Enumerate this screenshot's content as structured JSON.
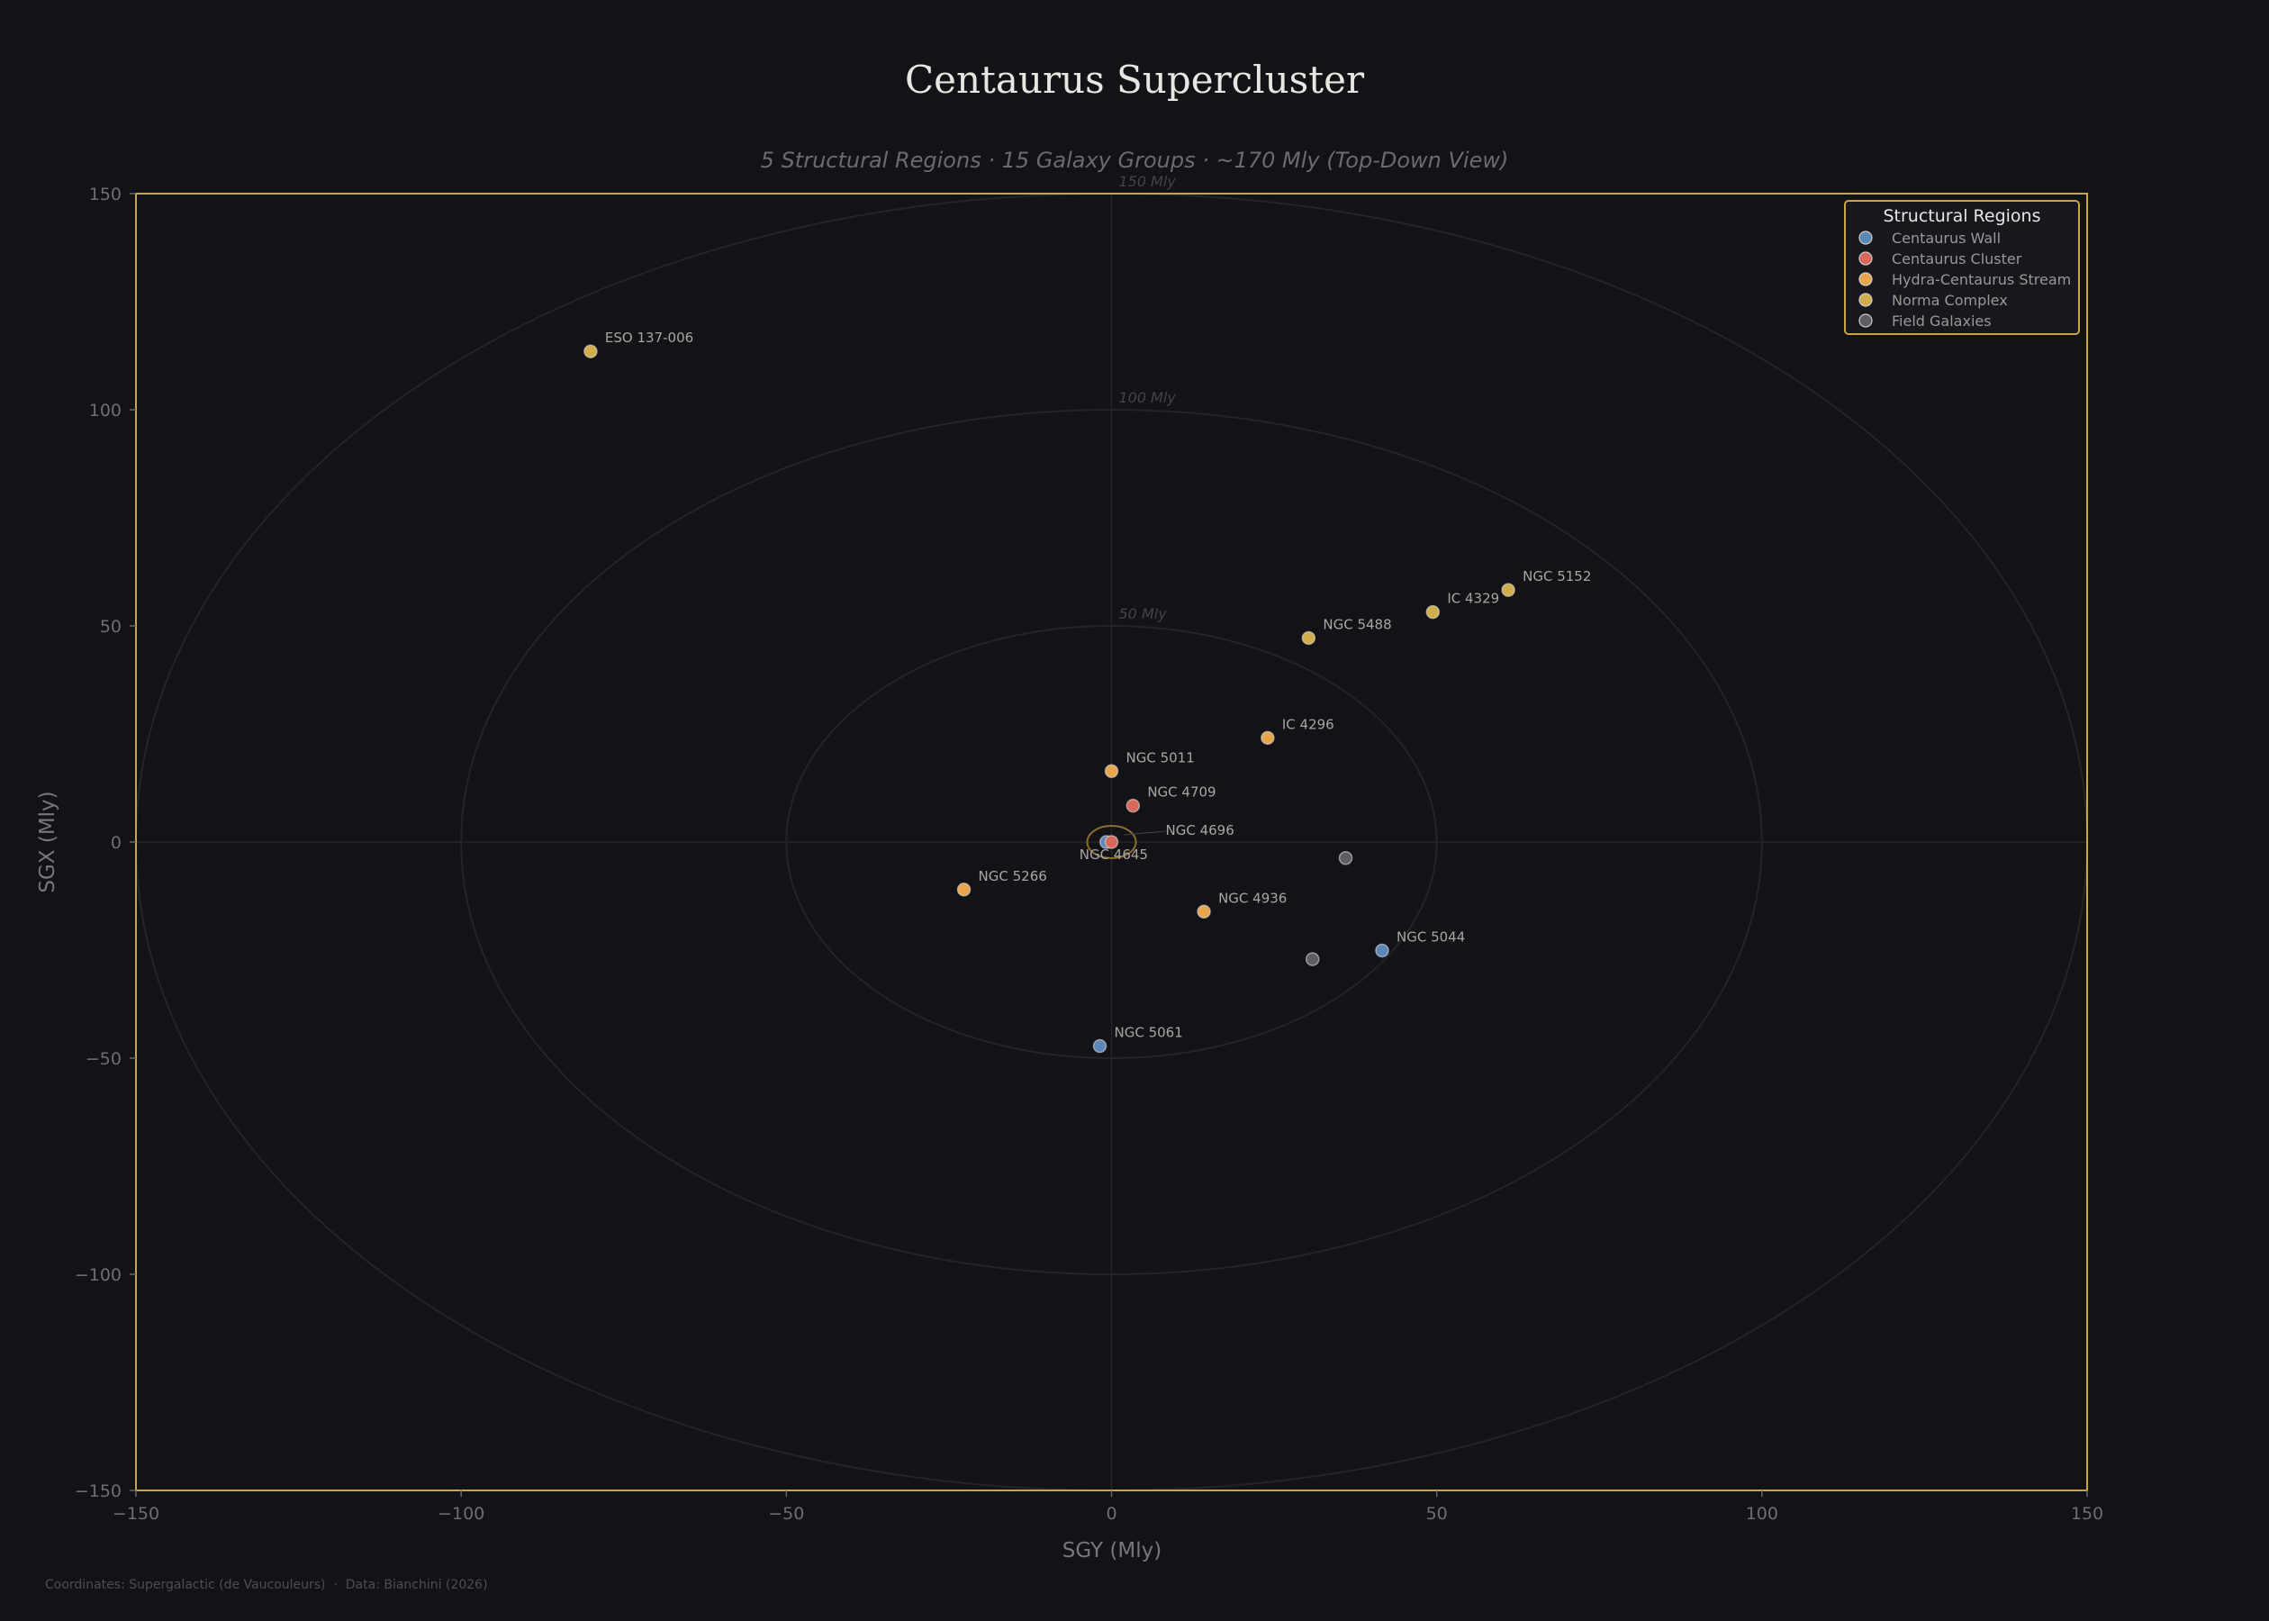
{
  "chart_data": {
    "type": "scatter",
    "title": "Centaurus Supercluster",
    "subtitle": "5 Structural Regions · 15 Galaxy Groups · ~170 Mly  (Top-Down View)",
    "xlabel": "SGY (Mly)",
    "ylabel": "SGX (Mly)",
    "xlim": [
      -150,
      150
    ],
    "ylim": [
      -150,
      150
    ],
    "xticks": [
      -150,
      -100,
      -50,
      0,
      50,
      100,
      150
    ],
    "yticks": [
      -150,
      -100,
      -50,
      0,
      50,
      100,
      150
    ],
    "tick_labels": [
      "−150",
      "−100",
      "−50",
      "0",
      "50",
      "100",
      "150"
    ],
    "grid": false,
    "rings": [
      {
        "r": 50,
        "label": "50 Mly"
      },
      {
        "r": 100,
        "label": "100 Mly"
      },
      {
        "r": 150,
        "label": "150 Mly"
      }
    ],
    "legend": {
      "title": "Structural Regions",
      "placement": "top-right",
      "entries": [
        {
          "name": "Centaurus Wall",
          "color": "#5b87b8"
        },
        {
          "name": "Centaurus Cluster",
          "color": "#d9665a"
        },
        {
          "name": "Hydra-Centaurus Stream",
          "color": "#e8a54c"
        },
        {
          "name": "Norma Complex",
          "color": "#d1ae4c"
        },
        {
          "name": "Field Galaxies",
          "color": "#5e5e62"
        }
      ]
    },
    "points": [
      {
        "label": "ESO 137-006",
        "x": -80.1,
        "y": 113.5,
        "region": 3
      },
      {
        "label": "NGC 5152",
        "x": 61.0,
        "y": 58.3,
        "region": 3
      },
      {
        "label": "IC 4329",
        "x": 49.4,
        "y": 53.2,
        "region": 3
      },
      {
        "label": "NGC 5488",
        "x": 30.3,
        "y": 47.2,
        "region": 3
      },
      {
        "label": "IC 4296",
        "x": 24.0,
        "y": 24.1,
        "region": 2
      },
      {
        "label": "NGC 5011",
        "x": 0.0,
        "y": 16.4,
        "region": 2
      },
      {
        "label": "NGC 4709",
        "x": 3.3,
        "y": 8.4,
        "region": 1
      },
      {
        "label": "NGC 4645",
        "x": -0.8,
        "y": 0.0,
        "region": 0
      },
      {
        "label": "NGC 4696",
        "x": 0.0,
        "y": 0.0,
        "region": 1
      },
      {
        "label": "",
        "x": 36.0,
        "y": -3.7,
        "region": 4
      },
      {
        "label": "NGC 5266",
        "x": -22.7,
        "y": -11.0,
        "region": 2
      },
      {
        "label": "NGC 4936",
        "x": 14.2,
        "y": -16.1,
        "region": 2
      },
      {
        "label": "",
        "x": 30.9,
        "y": -27.1,
        "region": 4
      },
      {
        "label": "NGC 5044",
        "x": 41.6,
        "y": -25.1,
        "region": 0
      },
      {
        "label": "NGC 5061",
        "x": -1.8,
        "y": -47.2,
        "region": 0
      }
    ],
    "footer": "Coordinates: Supergalactic (de Vaucouleurs)  ·  Data: Bianchini (2026)",
    "colors": {
      "background": "#131317",
      "frame": "#c9a640"
    }
  }
}
